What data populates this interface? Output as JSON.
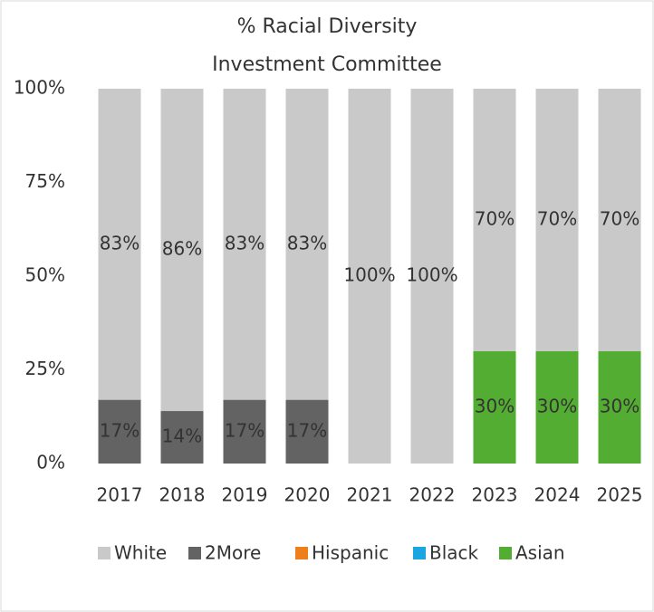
{
  "chart_data": {
    "type": "stacked_bar",
    "title": [
      "% Racial Diversity",
      "Investment Committee"
    ],
    "categories": [
      "2017",
      "2018",
      "2019",
      "2020",
      "2021",
      "2022",
      "2023",
      "2024",
      "2025"
    ],
    "series": [
      {
        "name": "White",
        "color": "#c9c9c9",
        "values": [
          83,
          86,
          83,
          83,
          100,
          100,
          70,
          70,
          70
        ],
        "value_labels": [
          "83%",
          "86%",
          "83%",
          "83%",
          "100%",
          "100%",
          "70%",
          "70%",
          "70%"
        ]
      },
      {
        "name": "2More",
        "color": "#636363",
        "values": [
          17,
          14,
          17,
          17,
          0,
          0,
          0,
          0,
          0
        ],
        "value_labels": [
          "17%",
          "14%",
          "17%",
          "17%",
          null,
          null,
          null,
          null,
          null
        ]
      },
      {
        "name": "Hispanic",
        "color": "#ee7f1a",
        "values": [
          0,
          0,
          0,
          0,
          0,
          0,
          0,
          0,
          0
        ]
      },
      {
        "name": "Black",
        "color": "#1aa6e0",
        "values": [
          0,
          0,
          0,
          0,
          0,
          0,
          0,
          0,
          0
        ]
      },
      {
        "name": "Asian",
        "color": "#53ad33",
        "values": [
          0,
          0,
          0,
          0,
          0,
          0,
          30,
          30,
          30
        ],
        "value_labels": [
          null,
          null,
          null,
          null,
          null,
          null,
          "30%",
          "30%",
          "30%"
        ]
      }
    ],
    "ylim": [
      0,
      100
    ],
    "yticks": [
      {
        "value": 0,
        "label": "0%"
      },
      {
        "value": 25,
        "label": "25%"
      },
      {
        "value": 50,
        "label": "50%"
      },
      {
        "value": 75,
        "label": "75%"
      },
      {
        "value": 100,
        "label": "100%"
      }
    ],
    "grid": false,
    "legend": "bottom"
  }
}
